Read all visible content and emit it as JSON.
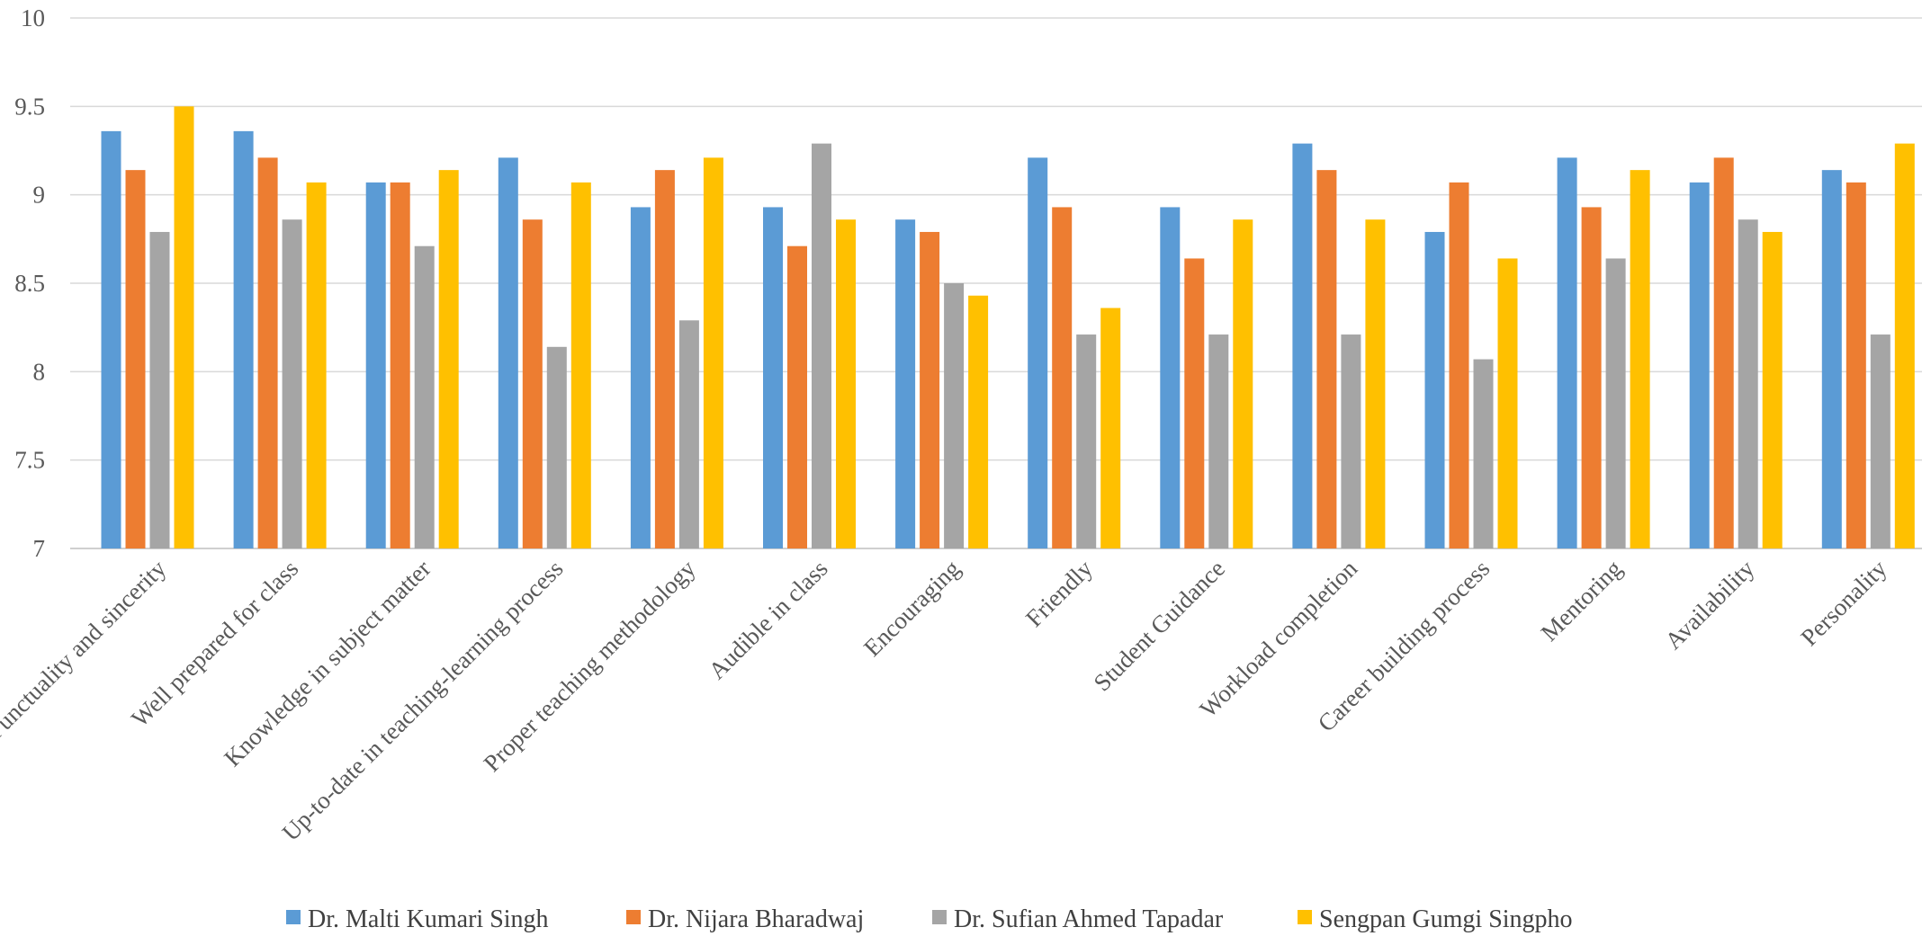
{
  "chart_data": {
    "type": "bar",
    "title": "",
    "xlabel": "",
    "ylabel": "",
    "ylim": [
      7,
      10
    ],
    "yticks": [
      7,
      7.5,
      8,
      8.5,
      9,
      9.5,
      10
    ],
    "ytick_labels": [
      "7",
      "7.5",
      "8",
      "8.5",
      "9",
      "9.5",
      "10"
    ],
    "grid": true,
    "legend_position": "bottom",
    "categories": [
      "Punctuality and sincerity",
      "Well prepared for class",
      "Knowledge in subject matter",
      "Up-to-date in teaching-learning process",
      "Proper teaching methodology",
      "Audible in class",
      "Encouraging",
      "Friendly",
      "Student Guidance",
      "Workload completion",
      "Career building process",
      "Mentoring",
      "Availability",
      "Personality"
    ],
    "series": [
      {
        "name": "Dr. Malti Kumari Singh",
        "color": "#5b9bd5",
        "values": [
          9.36,
          9.36,
          9.07,
          9.21,
          8.93,
          8.93,
          8.86,
          9.21,
          8.93,
          9.29,
          8.79,
          9.21,
          9.07,
          9.14
        ]
      },
      {
        "name": "Dr. Nijara Bharadwaj",
        "color": "#ed7d31",
        "values": [
          9.14,
          9.21,
          9.07,
          8.86,
          9.14,
          8.71,
          8.79,
          8.93,
          8.64,
          9.14,
          9.07,
          8.93,
          9.21,
          9.07
        ]
      },
      {
        "name": "Dr. Sufian Ahmed Tapadar",
        "color": "#a5a5a5",
        "values": [
          8.79,
          8.86,
          8.71,
          8.14,
          8.29,
          9.29,
          8.5,
          8.21,
          8.21,
          8.21,
          8.07,
          8.64,
          8.86,
          8.21
        ]
      },
      {
        "name": "Sengpan Gumgi Singpho",
        "color": "#ffc000",
        "values": [
          9.5,
          9.07,
          9.14,
          9.07,
          9.21,
          8.86,
          8.43,
          8.36,
          8.86,
          8.86,
          8.64,
          9.14,
          8.79,
          9.29
        ]
      }
    ]
  }
}
